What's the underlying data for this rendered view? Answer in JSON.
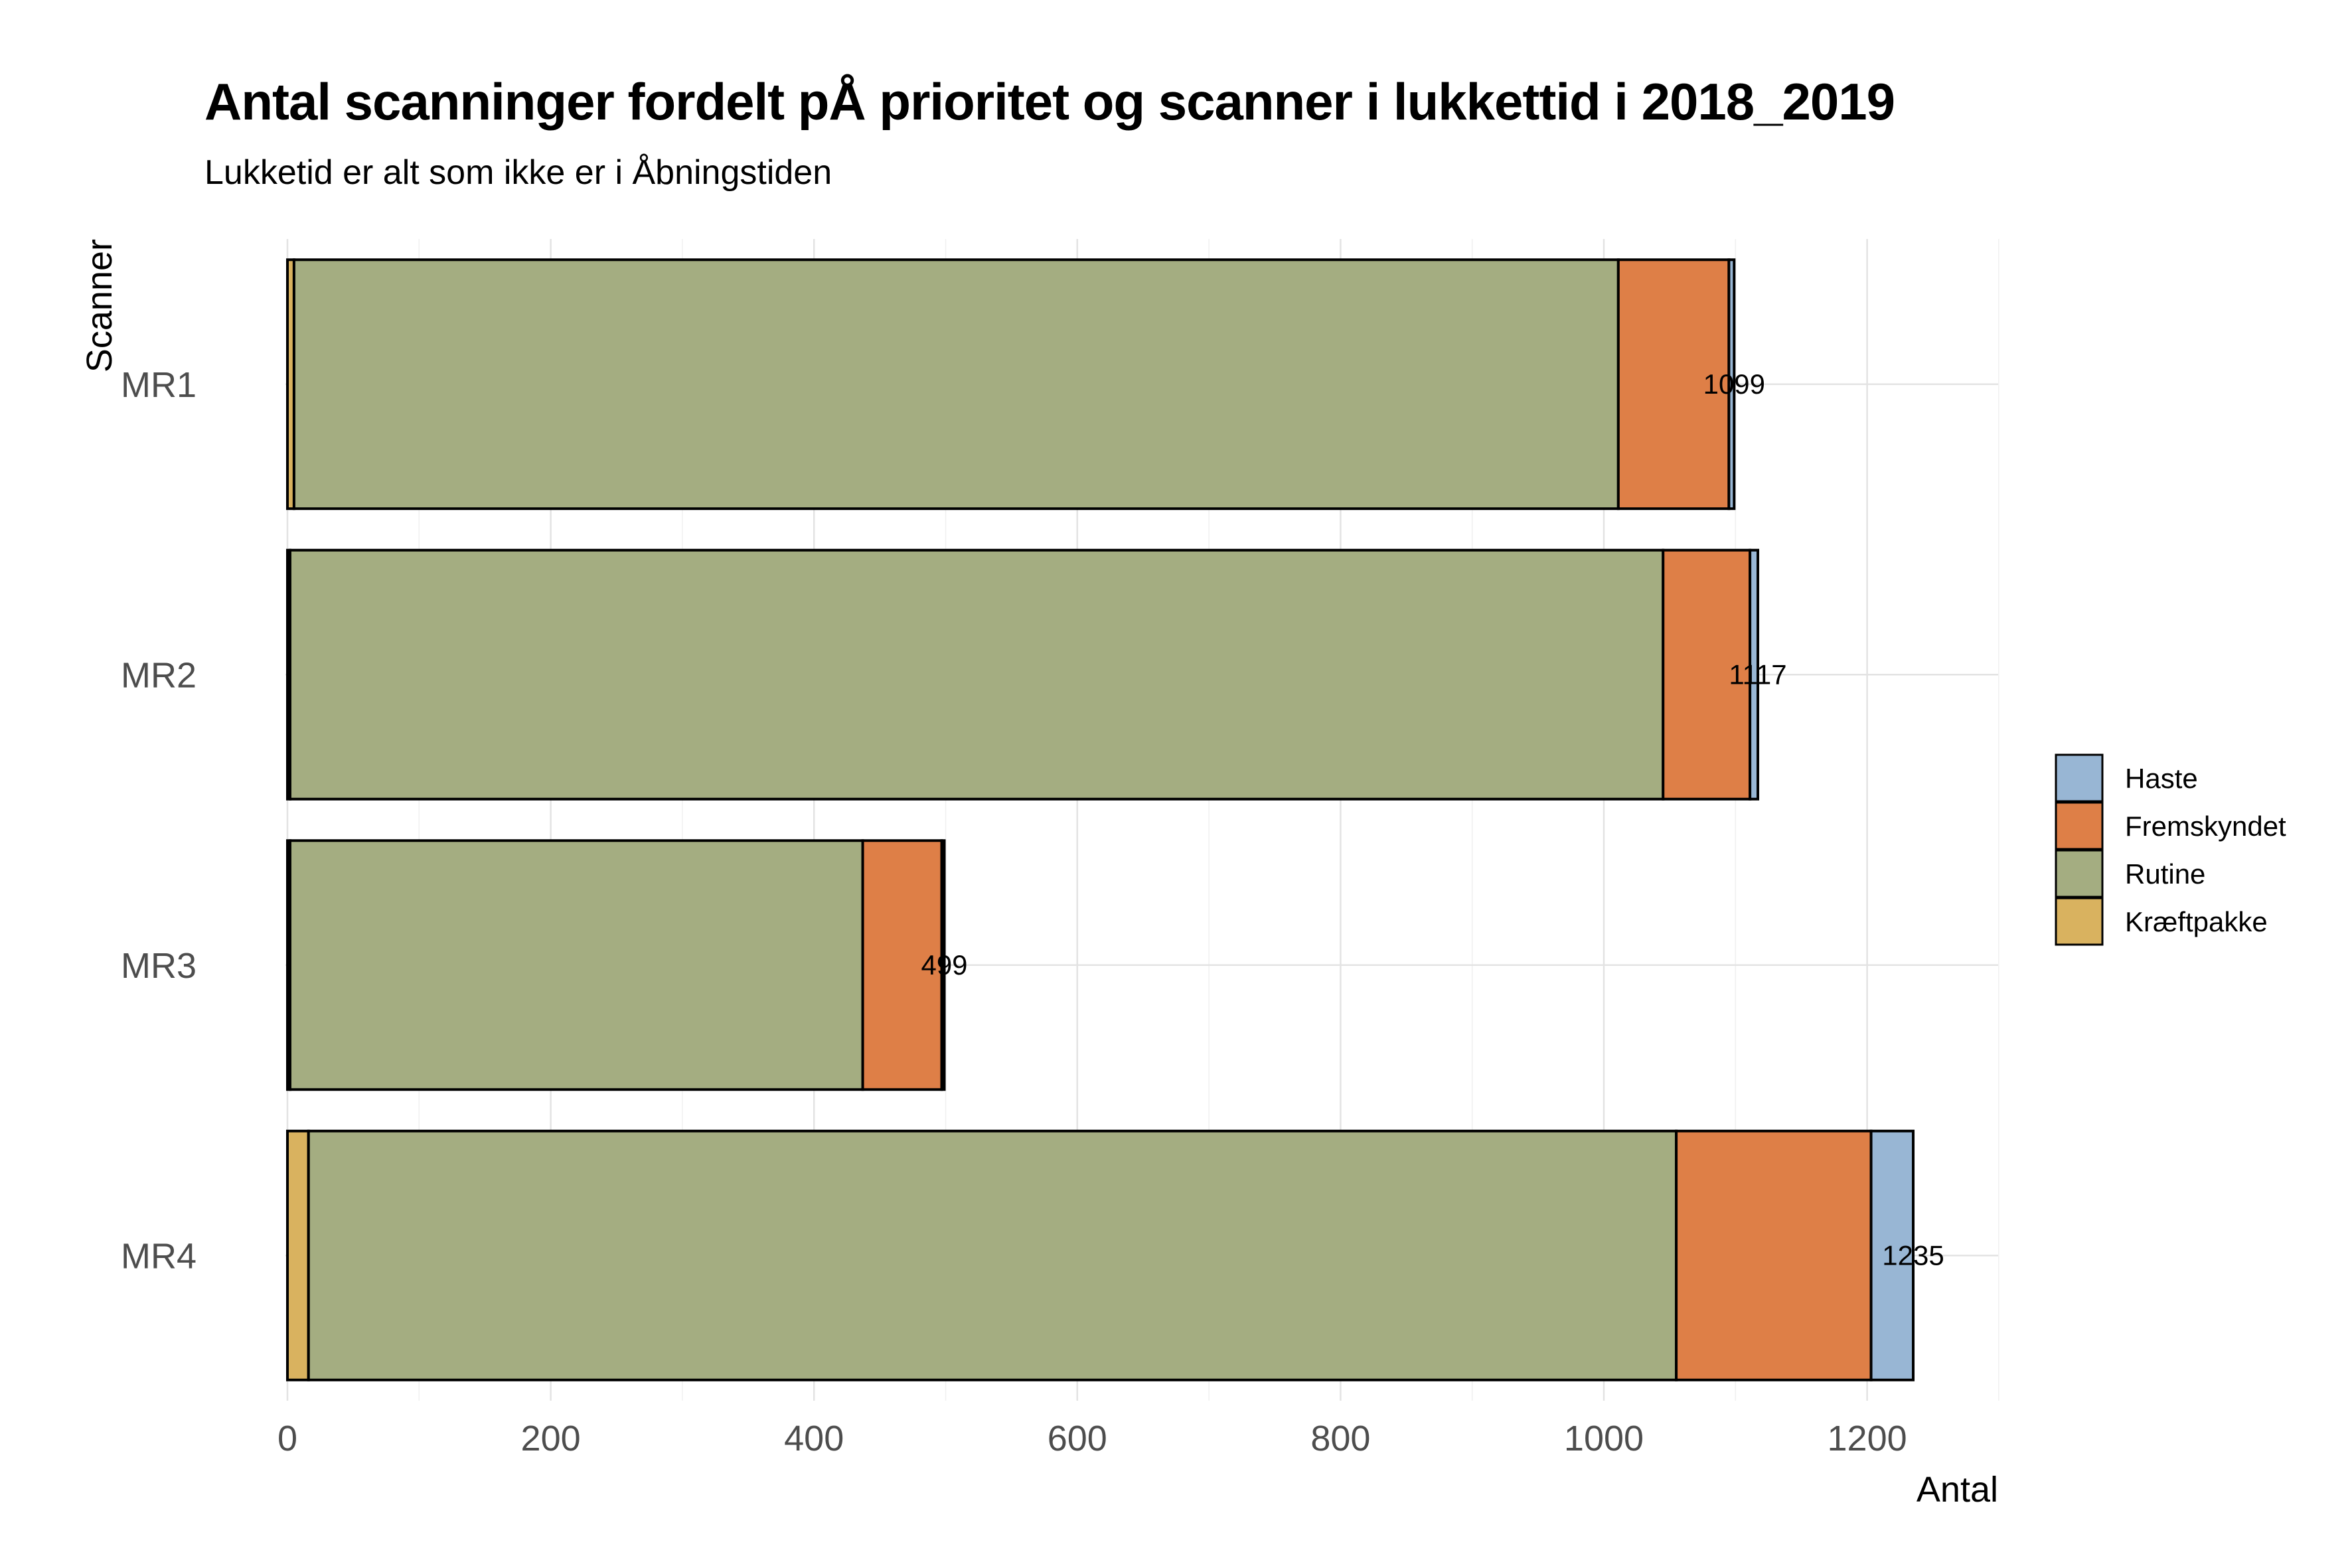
{
  "chart_data": {
    "type": "bar",
    "orientation": "horizontal",
    "stacked": true,
    "title": "Antal scanninger fordelt pÅ prioritet og scanner i lukkettid i 2018_2019",
    "subtitle": "Lukketid er alt som ikke er i Åbningstiden",
    "xlabel": "Antal",
    "ylabel": "Scanner",
    "categories": [
      "MR1",
      "MR2",
      "MR3",
      "MR4"
    ],
    "series": [
      {
        "name": "Kræftpakke",
        "color": "#D9B25F",
        "values": [
          5,
          2,
          2,
          16
        ]
      },
      {
        "name": "Rutine",
        "color": "#A4AD81",
        "values": [
          1006,
          1043,
          435,
          1039
        ]
      },
      {
        "name": "Fremskyndet",
        "color": "#DE7F47",
        "values": [
          84,
          66,
          60,
          148
        ]
      },
      {
        "name": "Haste",
        "color": "#98B6D4",
        "values": [
          4,
          6,
          2,
          32
        ]
      }
    ],
    "totals": [
      1099,
      1117,
      499,
      1235
    ],
    "total_labels": [
      "1099",
      "1117",
      "499",
      "1235"
    ],
    "x_ticks": [
      "0",
      "200",
      "400",
      "600",
      "800",
      "1000",
      "1200"
    ],
    "xlim": [
      0,
      1300
    ],
    "legend": {
      "placement": "right",
      "order": [
        "Haste",
        "Fremskyndet",
        "Rutine",
        "Kræftpakke"
      ]
    },
    "grid": true
  }
}
